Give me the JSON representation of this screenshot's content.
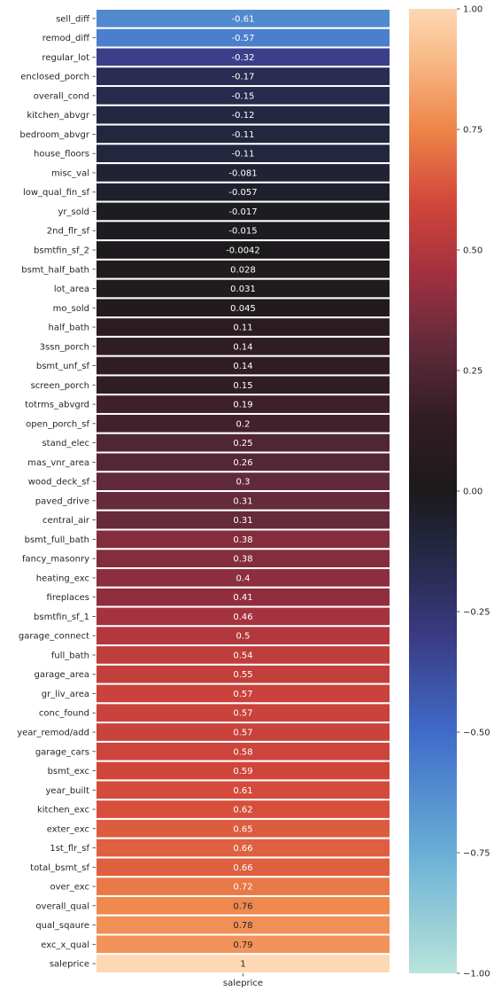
{
  "chart_data": {
    "type": "heatmap",
    "title": "",
    "xlabel": "",
    "ylabel": "",
    "columns": [
      "saleprice"
    ],
    "rows": [
      "sell_diff",
      "remod_diff",
      "regular_lot",
      "enclosed_porch",
      "overall_cond",
      "kitchen_abvgr",
      "bedroom_abvgr",
      "house_floors",
      "misc_val",
      "low_qual_fin_sf",
      "yr_sold",
      "2nd_flr_sf",
      "bsmtfin_sf_2",
      "bsmt_half_bath",
      "lot_area",
      "mo_sold",
      "half_bath",
      "3ssn_porch",
      "bsmt_unf_sf",
      "screen_porch",
      "totrms_abvgrd",
      "open_porch_sf",
      "stand_elec",
      "mas_vnr_area",
      "wood_deck_sf",
      "paved_drive",
      "central_air",
      "bsmt_full_bath",
      "fancy_masonry",
      "heating_exc",
      "fireplaces",
      "bsmtfin_sf_1",
      "garage_connect",
      "full_bath",
      "garage_area",
      "gr_liv_area",
      "conc_found",
      "year_remod/add",
      "garage_cars",
      "bsmt_exc",
      "year_built",
      "kitchen_exc",
      "exter_exc",
      "1st_flr_sf",
      "total_bsmt_sf",
      "over_exc",
      "overall_qual",
      "qual_sqaure",
      "exc_x_qual",
      "saleprice"
    ],
    "values": [
      -0.61,
      -0.57,
      -0.32,
      -0.17,
      -0.15,
      -0.12,
      -0.11,
      -0.11,
      -0.081,
      -0.057,
      -0.017,
      -0.015,
      -0.0042,
      0.028,
      0.031,
      0.045,
      0.11,
      0.14,
      0.14,
      0.15,
      0.19,
      0.2,
      0.25,
      0.26,
      0.3,
      0.31,
      0.31,
      0.38,
      0.38,
      0.4,
      0.41,
      0.46,
      0.5,
      0.54,
      0.55,
      0.57,
      0.57,
      0.57,
      0.58,
      0.59,
      0.61,
      0.62,
      0.65,
      0.66,
      0.66,
      0.72,
      0.76,
      0.78,
      0.79,
      1
    ],
    "value_labels": [
      "-0.61",
      "-0.57",
      "-0.32",
      "-0.17",
      "-0.15",
      "-0.12",
      "-0.11",
      "-0.11",
      "-0.081",
      "-0.057",
      "-0.017",
      "-0.015",
      "-0.0042",
      "0.028",
      "0.031",
      "0.045",
      "0.11",
      "0.14",
      "0.14",
      "0.15",
      "0.19",
      "0.2",
      "0.25",
      "0.26",
      "0.3",
      "0.31",
      "0.31",
      "0.38",
      "0.38",
      "0.4",
      "0.41",
      "0.46",
      "0.5",
      "0.54",
      "0.55",
      "0.57",
      "0.57",
      "0.57",
      "0.58",
      "0.59",
      "0.61",
      "0.62",
      "0.65",
      "0.66",
      "0.66",
      "0.72",
      "0.76",
      "0.78",
      "0.79",
      "1"
    ],
    "colorbar": {
      "range": [
        -1,
        1
      ],
      "ticks": [
        -1.0,
        -0.75,
        -0.5,
        -0.25,
        0.0,
        0.25,
        0.5,
        0.75,
        1.0
      ],
      "tick_labels": [
        "−1.00",
        "−0.75",
        "−0.50",
        "−0.25",
        "0.00",
        "0.25",
        "0.50",
        "0.75",
        "1.00"
      ]
    },
    "colormap_stops": [
      {
        "v": -1.0,
        "color": "#b9e4da"
      },
      {
        "v": -0.75,
        "color": "#69afd6"
      },
      {
        "v": -0.5,
        "color": "#3f6bc9"
      },
      {
        "v": -0.3,
        "color": "#3b3a83"
      },
      {
        "v": -0.12,
        "color": "#232741"
      },
      {
        "v": 0.0,
        "color": "#1c1a1b"
      },
      {
        "v": 0.15,
        "color": "#311d24"
      },
      {
        "v": 0.3,
        "color": "#612a3b"
      },
      {
        "v": 0.45,
        "color": "#a2303f"
      },
      {
        "v": 0.6,
        "color": "#d3473a"
      },
      {
        "v": 0.75,
        "color": "#ee8549"
      },
      {
        "v": 0.9,
        "color": "#f8bb89"
      },
      {
        "v": 1.0,
        "color": "#fdd8b3"
      }
    ],
    "grid": false,
    "annotated": true
  }
}
